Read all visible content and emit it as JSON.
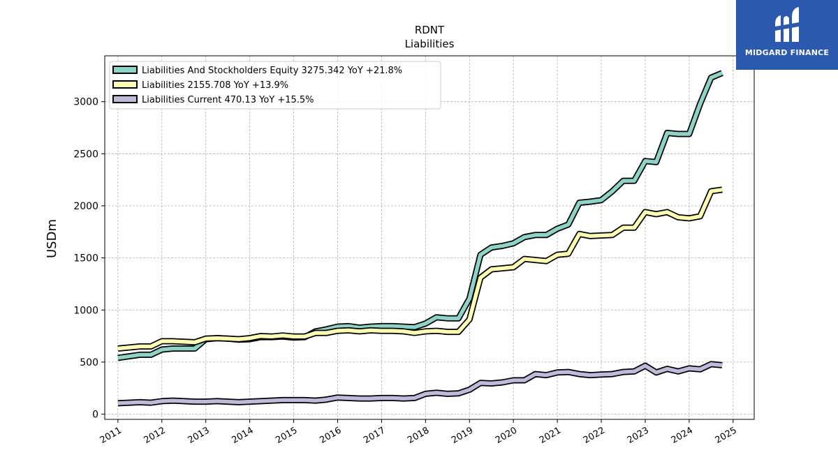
{
  "chart_data": {
    "type": "line",
    "title": "RDNT",
    "subtitle": "Liabilities",
    "xlabel": "",
    "ylabel": "USDm",
    "xlim": [
      2010.7,
      2025.48
    ],
    "ylim": [
      -50,
      3440
    ],
    "xticks": [
      "2011",
      "2012",
      "2013",
      "2014",
      "2015",
      "2016",
      "2017",
      "2018",
      "2019",
      "2020",
      "2021",
      "2022",
      "2023",
      "2024",
      "2025"
    ],
    "yticks": [
      "0",
      "500",
      "1000",
      "1500",
      "2000",
      "2500",
      "3000"
    ],
    "grid": true,
    "legend_position": "top-left",
    "x": [
      2011.0,
      2011.25,
      2011.5,
      2011.75,
      2012.0,
      2012.25,
      2012.5,
      2012.75,
      2013.0,
      2013.25,
      2013.5,
      2013.75,
      2014.0,
      2014.25,
      2014.5,
      2014.75,
      2015.0,
      2015.25,
      2015.5,
      2015.75,
      2016.0,
      2016.25,
      2016.5,
      2016.75,
      2017.0,
      2017.25,
      2017.5,
      2017.75,
      2018.0,
      2018.25,
      2018.5,
      2018.75,
      2019.0,
      2019.25,
      2019.5,
      2019.75,
      2020.0,
      2020.25,
      2020.5,
      2020.75,
      2021.0,
      2021.25,
      2021.5,
      2021.75,
      2022.0,
      2022.25,
      2022.5,
      2022.75,
      2023.0,
      2023.25,
      2023.5,
      2023.75,
      2024.0,
      2024.25,
      2024.5,
      2024.75
    ],
    "series": [
      {
        "name": "Liabilities And Stockholders Equity",
        "legend": "Liabilities And Stockholders Equity  3275.342 YoY +21.8%",
        "color": "#8dd3c7",
        "values": [
          540,
          555,
          570,
          570,
          620,
          630,
          630,
          630,
          720,
          730,
          725,
          715,
          720,
          740,
          740,
          745,
          735,
          740,
          795,
          815,
          840,
          845,
          830,
          840,
          845,
          845,
          840,
          835,
          870,
          930,
          920,
          920,
          1110,
          1530,
          1600,
          1615,
          1640,
          1700,
          1720,
          1720,
          1780,
          1820,
          2030,
          2040,
          2055,
          2140,
          2240,
          2240,
          2430,
          2420,
          2700,
          2690,
          2690,
          2980,
          3230,
          3275
        ]
      },
      {
        "name": "Liabilities",
        "legend": "Liabilities  2155.708 YoY +13.9%",
        "color": "#ffffb3",
        "values": [
          630,
          640,
          650,
          650,
          700,
          700,
          695,
          690,
          725,
          730,
          725,
          720,
          730,
          750,
          745,
          755,
          745,
          745,
          780,
          780,
          800,
          805,
          795,
          805,
          800,
          800,
          795,
          780,
          795,
          800,
          790,
          790,
          910,
          1310,
          1390,
          1400,
          1410,
          1490,
          1480,
          1470,
          1530,
          1540,
          1730,
          1710,
          1715,
          1720,
          1790,
          1790,
          1940,
          1920,
          1940,
          1890,
          1880,
          1900,
          2140,
          2155
        ]
      },
      {
        "name": "Liabilities Current",
        "legend": "Liabilities Current  470.13 YoY +15.5%",
        "color": "#bebada",
        "values": [
          105,
          110,
          115,
          110,
          125,
          130,
          125,
          120,
          120,
          125,
          120,
          115,
          120,
          125,
          130,
          135,
          135,
          135,
          130,
          140,
          160,
          155,
          150,
          150,
          155,
          155,
          150,
          155,
          195,
          205,
          195,
          200,
          235,
          300,
          295,
          305,
          325,
          325,
          385,
          375,
          400,
          405,
          385,
          375,
          380,
          385,
          405,
          410,
          465,
          400,
          435,
          410,
          440,
          430,
          480,
          470
        ]
      }
    ]
  },
  "logo": {
    "text": "MIDGARD FINANCE",
    "background": "#2a59ad",
    "icon": "midgard-finance-logo-icon"
  }
}
